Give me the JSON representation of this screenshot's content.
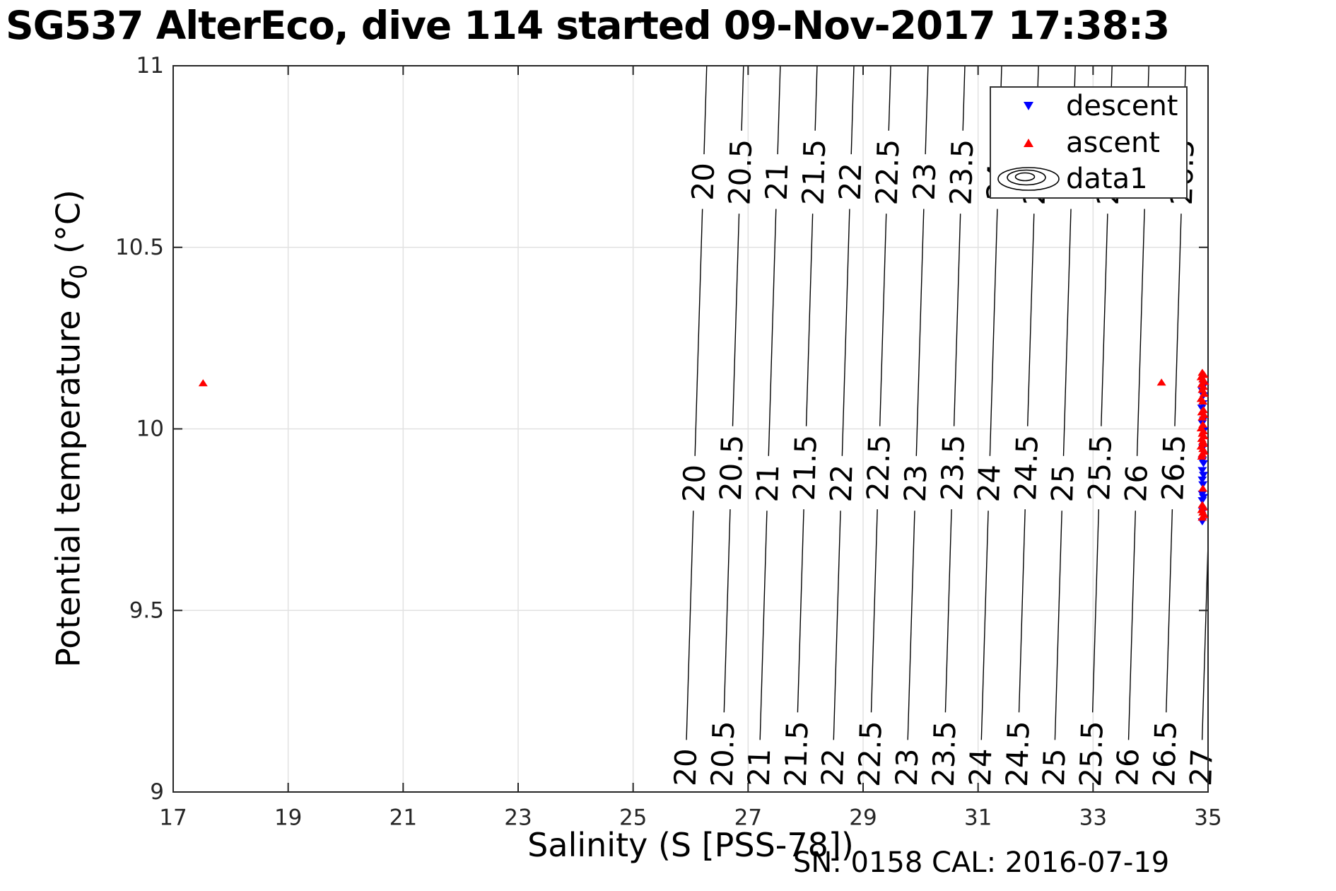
{
  "title": "SG537 AlterEco, dive 114 started 09-Nov-2017 17:38:3",
  "footer": "SN: 0158  CAL: 2016-07-19",
  "chart_data": {
    "type": "scatter",
    "title": "SG537 AlterEco, dive 114 started 09-Nov-2017 17:38:3",
    "xlabel": "Salinity (S [PSS-78])",
    "ylabel": "Potential temperature σ0 (°C)",
    "ylabel_parts": {
      "prefix": "Potential temperature ",
      "sigma": "σ",
      "subscript": "0",
      "suffix": " (°C)"
    },
    "xlim": [
      17,
      35
    ],
    "ylim": [
      9,
      11
    ],
    "xtick_values": [
      17,
      19,
      21,
      23,
      25,
      27,
      29,
      31,
      33,
      35
    ],
    "xtick_labels": [
      "17",
      "19",
      "21",
      "23",
      "25",
      "27",
      "29",
      "31",
      "33",
      "35"
    ],
    "ytick_values": [
      9,
      9.5,
      10,
      10.5,
      11
    ],
    "ytick_labels": [
      "9",
      "9.5",
      "10",
      "10.5",
      "11"
    ],
    "grid": true,
    "colors": {
      "grid": "#e2e2e2",
      "axis": "#262626",
      "contour": "#000000",
      "descent": "#0000ff",
      "ascent": "#ff0000"
    },
    "legend": {
      "position": "top-right",
      "entries": [
        {
          "label": "descent",
          "marker": "triangle-down",
          "color": "#0000ff"
        },
        {
          "label": "ascent",
          "marker": "triangle-up",
          "color": "#ff0000"
        },
        {
          "label": "data1",
          "marker": "contour-ellipses",
          "color": "#000000"
        }
      ]
    },
    "isopycnals": {
      "description": "sigma0 density contour lines labeled on plot",
      "ds_dt": 0.19,
      "label_band_temps": {
        "whole": [
          9.068,
          9.85,
          10.681
        ],
        "half": [
          9.105,
          9.893,
          10.707
        ]
      },
      "levels": [
        {
          "label": "20",
          "s_at_10c": 26.09
        },
        {
          "label": "20.5",
          "s_at_10c": 26.73
        },
        {
          "label": "21",
          "s_at_10c": 27.37
        },
        {
          "label": "21.5",
          "s_at_10c": 28.01
        },
        {
          "label": "22",
          "s_at_10c": 28.65
        },
        {
          "label": "22.5",
          "s_at_10c": 29.29
        },
        {
          "label": "23",
          "s_at_10c": 29.94
        },
        {
          "label": "23.5",
          "s_at_10c": 30.58
        },
        {
          "label": "24",
          "s_at_10c": 31.22
        },
        {
          "label": "24.5",
          "s_at_10c": 31.86
        },
        {
          "label": "25",
          "s_at_10c": 32.5
        },
        {
          "label": "25.5",
          "s_at_10c": 33.14
        },
        {
          "label": "26",
          "s_at_10c": 33.78
        },
        {
          "label": "26.5",
          "s_at_10c": 34.42
        },
        {
          "label": "27",
          "s_at_10c": 35.06
        }
      ]
    },
    "series": [
      {
        "name": "descent",
        "marker": "triangle-down",
        "color": "#0000ff",
        "points": [
          [
            34.93,
            10.12
          ],
          [
            34.9,
            10.105
          ],
          [
            34.92,
            10.092
          ],
          [
            34.91,
            10.07
          ],
          [
            34.89,
            10.058
          ],
          [
            34.92,
            10.025
          ],
          [
            34.9,
            10.016
          ],
          [
            34.93,
            9.996
          ],
          [
            34.91,
            9.948
          ],
          [
            34.9,
            9.913
          ],
          [
            34.92,
            9.905
          ],
          [
            34.9,
            9.886
          ],
          [
            34.92,
            9.873
          ],
          [
            34.9,
            9.86
          ],
          [
            34.91,
            9.847
          ],
          [
            34.9,
            9.821
          ],
          [
            34.92,
            9.812
          ],
          [
            34.9,
            9.803
          ],
          [
            34.91,
            9.773
          ],
          [
            34.9,
            9.745
          ]
        ]
      },
      {
        "name": "ascent",
        "marker": "triangle-up",
        "color": "#ff0000",
        "points": [
          [
            17.52,
            10.126
          ],
          [
            34.19,
            10.128
          ],
          [
            34.9,
            10.155
          ],
          [
            34.93,
            10.149
          ],
          [
            34.88,
            10.143
          ],
          [
            34.91,
            10.137
          ],
          [
            34.94,
            10.13
          ],
          [
            34.89,
            10.123
          ],
          [
            34.92,
            10.116
          ],
          [
            34.9,
            10.108
          ],
          [
            34.93,
            10.097
          ],
          [
            34.88,
            10.083
          ],
          [
            34.91,
            10.076
          ],
          [
            34.92,
            10.052
          ],
          [
            34.89,
            10.046
          ],
          [
            34.93,
            10.039
          ],
          [
            34.9,
            10.032
          ],
          [
            34.91,
            10.012
          ],
          [
            34.88,
            10.002
          ],
          [
            34.92,
            9.994
          ],
          [
            34.9,
            9.987
          ],
          [
            34.93,
            9.98
          ],
          [
            34.89,
            9.973
          ],
          [
            34.91,
            9.966
          ],
          [
            34.92,
            9.959
          ],
          [
            34.88,
            9.952
          ],
          [
            34.91,
            9.945
          ],
          [
            34.93,
            9.938
          ],
          [
            34.9,
            9.931
          ],
          [
            34.89,
            9.924
          ],
          [
            34.91,
            9.836
          ],
          [
            34.9,
            9.791
          ],
          [
            34.92,
            9.784
          ],
          [
            34.89,
            9.777
          ],
          [
            34.91,
            9.77
          ],
          [
            34.93,
            9.763
          ],
          [
            34.9,
            9.756
          ]
        ]
      }
    ]
  }
}
